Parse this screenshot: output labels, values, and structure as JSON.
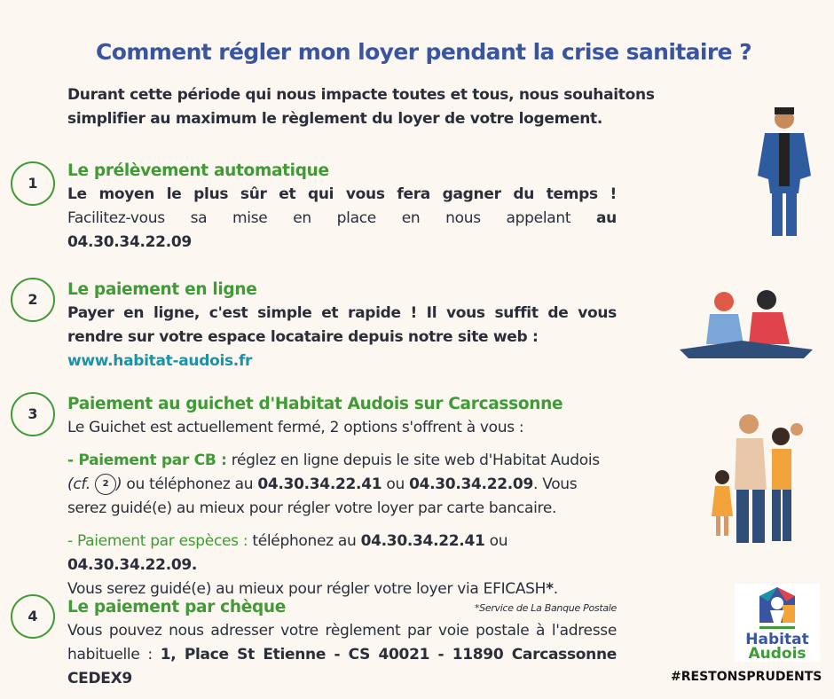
{
  "title": "Comment régler mon loyer pendant la crise sanitaire ?",
  "intro": "Durant cette période qui nous impacte toutes et tous, nous souhaitons simplifier au maximum le règlement du loyer de votre logement.",
  "sections": [
    {
      "number": "1",
      "heading": "Le prélèvement automatique",
      "line1": "Le moyen le plus sûr et qui vous fera gagner du temps !",
      "line2": "Facilitez-vous sa mise en place en nous appelant",
      "line2_bold": "au",
      "phone": "04.30.34.22.09"
    },
    {
      "number": "2",
      "heading": "Le paiement en ligne",
      "text": "Payer en ligne, c'est simple et rapide ! Il vous suffit de vous rendre sur votre espace locataire depuis notre site web  :",
      "link": "www.habitat-audois.fr"
    },
    {
      "number": "3",
      "heading": "Paiement au guichet d'Habitat Audois sur Carcassonne",
      "intro": "Le Guichet est actuellement fermé, 2 options s'offrent à vous :",
      "cb_label": "- Paiement par CB :",
      "cb_text1": " réglez en ligne depuis le site web d'Habitat Audois",
      "cb_cf": "(cf.",
      "cb_ref": "2",
      "cb_cf_end": ")",
      "cb_text2": " ou téléphonez au ",
      "phone1": "04.30.34.22.41",
      "or": " ou ",
      "phone2": "04.30.34.22.09",
      "cb_text3": ". Vous serez guidé(e) au mieux pour régler votre loyer par carte bancaire.",
      "cash_label": "- Paiement par espèces :",
      "cash_text1": " téléphonez au ",
      "cash_phone2": "04.30.34.22.09.",
      "cash_text2": "Vous serez guidé(e) au mieux pour régler votre loyer via EFICASH",
      "star": "*",
      "dot": ".",
      "footnote": "*Service de La Banque Postale"
    },
    {
      "number": "4",
      "heading": "Le paiement par chèque",
      "text": "Vous pouvez nous adresser votre règlement par voie postale à l'adresse habituelle :",
      "address": "1, Place St Etienne - CS 40021 - 11890 Carcassonne CEDEX9"
    }
  ],
  "logo": {
    "line1": "Habitat",
    "line2": "Audois"
  },
  "hashtag": "#RESTONSPRUDENTS",
  "colors": {
    "title": "#3a55a0",
    "green": "#3f9b35",
    "link": "#1a93a8",
    "background": "#fcf7f0"
  }
}
